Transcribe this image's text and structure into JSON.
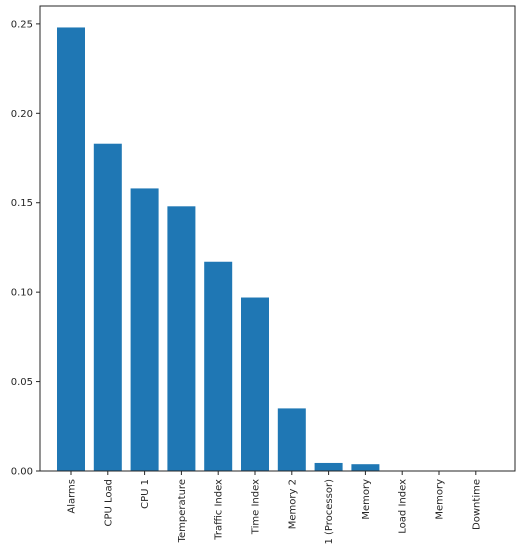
{
  "chart_data": {
    "type": "bar",
    "title": "",
    "xlabel": "",
    "ylabel": "",
    "categories": [
      "Alarms",
      "CPU Load",
      "CPU 1",
      "Temperature",
      "Traffic Index",
      "Time Index",
      "Memory 2",
      "1 (Processor)",
      "Memory",
      "Load Index",
      "Memory",
      "Downtime"
    ],
    "values": [
      0.248,
      0.183,
      0.158,
      0.148,
      0.117,
      0.097,
      0.035,
      0.0045,
      0.0038,
      0.0,
      0.0,
      0.0
    ],
    "ylim": [
      0,
      0.26
    ],
    "yticks": [
      0.0,
      0.05,
      0.1,
      0.15,
      0.2,
      0.25
    ],
    "ytick_labels": [
      "0.00",
      "0.05",
      "0.10",
      "0.15",
      "0.20",
      "0.25"
    ],
    "bar_color": "#1f77b4",
    "axis_color": "#262626",
    "grid": false,
    "legend": "none"
  }
}
